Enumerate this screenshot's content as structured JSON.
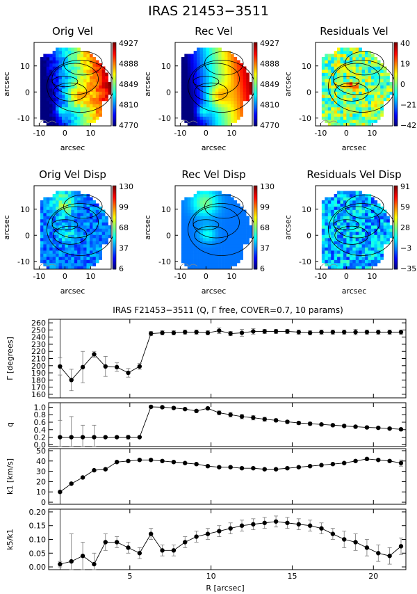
{
  "figure_title": "IRAS 21453−3511",
  "plots_title": "IRAS F21453−3511 (Q, Γ  free, COVER=0.7, 10 params)",
  "x_axis_label": "R [arcsec]",
  "colors": {
    "colormap": [
      "#00007f",
      "#0000ff",
      "#007fff",
      "#00ffff",
      "#7fff7f",
      "#ffff00",
      "#ff7f00",
      "#ff0000",
      "#7f0000"
    ],
    "contour": "#000000",
    "marker": "#000000"
  },
  "chart_data": [
    {
      "type": "heatmap",
      "id": "orig-vel",
      "title": "Orig Vel",
      "xlabel": "arcsec",
      "ylabel": "arcsec",
      "xticks": [
        "-10",
        "0",
        "10"
      ],
      "yticks": [
        "10",
        "0",
        "-10"
      ],
      "colorbar_ticks": [
        "4927",
        "4888",
        "4849",
        "4810",
        "4770"
      ],
      "colorbar_range": [
        4770,
        4927
      ],
      "pattern": "vel"
    },
    {
      "type": "heatmap",
      "id": "rec-vel",
      "title": "Rec Vel",
      "xlabel": "arcsec",
      "ylabel": "arcsec",
      "xticks": [
        "-10",
        "0",
        "10"
      ],
      "yticks": [
        "10",
        "0",
        "-10"
      ],
      "colorbar_ticks": [
        "4927",
        "4888",
        "4849",
        "4810",
        "4770"
      ],
      "colorbar_range": [
        4770,
        4927
      ],
      "pattern": "vel-smooth"
    },
    {
      "type": "heatmap",
      "id": "residuals-vel",
      "title": "Residuals Vel",
      "xlabel": "arcsec",
      "ylabel": "arcsec",
      "xticks": [
        "-10",
        "0",
        "10"
      ],
      "yticks": [
        "10",
        "0",
        "-10"
      ],
      "colorbar_ticks": [
        "40",
        "19",
        "0",
        "−21",
        "−42"
      ],
      "colorbar_range": [
        -42,
        40
      ],
      "pattern": "resid"
    },
    {
      "type": "heatmap",
      "id": "orig-vel-disp",
      "title": "Orig Vel Disp",
      "xlabel": "arcsec",
      "ylabel": "arcsec",
      "xticks": [
        "-10",
        "0",
        "10"
      ],
      "yticks": [
        "10",
        "0",
        "-10"
      ],
      "colorbar_ticks": [
        "130",
        "99",
        "68",
        "37",
        "6"
      ],
      "colorbar_range": [
        6,
        130
      ],
      "pattern": "disp"
    },
    {
      "type": "heatmap",
      "id": "rec-vel-disp",
      "title": "Rec Vel Disp",
      "xlabel": "arcsec",
      "ylabel": "arcsec",
      "xticks": [
        "-10",
        "0",
        "10"
      ],
      "yticks": [
        "10",
        "0",
        "-10"
      ],
      "colorbar_ticks": [
        "130",
        "99",
        "68",
        "37",
        "6"
      ],
      "colorbar_range": [
        6,
        130
      ],
      "pattern": "disp-smooth"
    },
    {
      "type": "heatmap",
      "id": "residuals-vel-disp",
      "title": "Residuals Vel Disp",
      "xlabel": "arcsec",
      "ylabel": "arcsec",
      "xticks": [
        "-10",
        "0",
        "10"
      ],
      "yticks": [
        "10",
        "0",
        "-10"
      ],
      "colorbar_ticks": [
        "91",
        "59",
        "28",
        "−3",
        "−35"
      ],
      "colorbar_range": [
        -35,
        91
      ],
      "pattern": "resid-disp"
    },
    {
      "type": "line",
      "id": "gamma",
      "ylabel": "Γ [degrees]",
      "ylim": [
        155,
        265
      ],
      "yticks": [
        160,
        170,
        180,
        190,
        200,
        210,
        220,
        230,
        240,
        250,
        260
      ],
      "x": [
        0.7,
        1.4,
        2.1,
        2.8,
        3.5,
        4.2,
        4.9,
        5.6,
        6.3,
        7.0,
        7.7,
        8.4,
        9.1,
        9.8,
        10.5,
        11.2,
        11.9,
        12.6,
        13.3,
        14.0,
        14.7,
        15.4,
        16.1,
        16.8,
        17.5,
        18.2,
        18.9,
        19.6,
        20.3,
        21.0,
        21.7
      ],
      "values": [
        199,
        180,
        198,
        216,
        199,
        198,
        190,
        199,
        245,
        246,
        246,
        247,
        247,
        246,
        249,
        245,
        246,
        248,
        248,
        248,
        248,
        247,
        246,
        247,
        247,
        247,
        247,
        247,
        247,
        247,
        247
      ],
      "errors": [
        12,
        15,
        22,
        4,
        14,
        6,
        6,
        4,
        3,
        3,
        3,
        3,
        3,
        3,
        4,
        3,
        5,
        4,
        3,
        3,
        3,
        3,
        3,
        3,
        3,
        3,
        4,
        3,
        3,
        3,
        3
      ]
    },
    {
      "type": "line",
      "id": "q",
      "ylabel": "q",
      "ylim": [
        -0.05,
        1.12
      ],
      "yticks": [
        0.0,
        0.2,
        0.4,
        0.6,
        0.8,
        1.0
      ],
      "tick_labels": [
        "0.0",
        "0.2",
        "0.4",
        "0.6",
        "0.8",
        "1.0"
      ],
      "x": [
        0.7,
        1.4,
        2.1,
        2.8,
        3.5,
        4.2,
        4.9,
        5.6,
        6.3,
        7.0,
        7.7,
        8.4,
        9.1,
        9.8,
        10.5,
        11.2,
        11.9,
        12.6,
        13.3,
        14.0,
        14.7,
        15.4,
        16.1,
        16.8,
        17.5,
        18.2,
        18.9,
        19.6,
        20.3,
        21.0,
        21.7
      ],
      "values": [
        0.2,
        0.2,
        0.2,
        0.2,
        0.2,
        0.2,
        0.2,
        0.2,
        1.01,
        1.0,
        0.98,
        0.95,
        0.9,
        0.97,
        0.85,
        0.8,
        0.75,
        0.72,
        0.68,
        0.65,
        0.61,
        0.58,
        0.56,
        0.54,
        0.52,
        0.5,
        0.48,
        0.46,
        0.45,
        0.43,
        0.41
      ],
      "errors": [
        0.45,
        0.55,
        0.32,
        0.32,
        0.0,
        0.0,
        0.05,
        0.0,
        0.03,
        0.03,
        0.03,
        0.03,
        0.03,
        0.03,
        0.05,
        0.06,
        0.06,
        0.06,
        0.05,
        0.04,
        0.04,
        0.04,
        0.04,
        0.03,
        0.03,
        0.03,
        0.03,
        0.03,
        0.03,
        0.03,
        0.03
      ]
    },
    {
      "type": "line",
      "id": "k1",
      "ylabel": "k1 [km/s]",
      "ylim": [
        -2,
        52
      ],
      "yticks": [
        0,
        10,
        20,
        30,
        40,
        50
      ],
      "x": [
        0.7,
        1.4,
        2.1,
        2.8,
        3.5,
        4.2,
        4.9,
        5.6,
        6.3,
        7.0,
        7.7,
        8.4,
        9.1,
        9.8,
        10.5,
        11.2,
        11.9,
        12.6,
        13.3,
        14.0,
        14.7,
        15.4,
        16.1,
        16.8,
        17.5,
        18.2,
        18.9,
        19.6,
        20.3,
        21.0,
        21.7
      ],
      "values": [
        10,
        18,
        24,
        31,
        32,
        39,
        40,
        41,
        41,
        40,
        39,
        38,
        37,
        35,
        34,
        34,
        33,
        33,
        32,
        32,
        33,
        34,
        35,
        36,
        37,
        38,
        40,
        42,
        41,
        40,
        38
      ],
      "errors": [
        1,
        1,
        1,
        1,
        1,
        1,
        1,
        1,
        1,
        1,
        1,
        1,
        1,
        1,
        1,
        1,
        1,
        1,
        1,
        1,
        1,
        1,
        1,
        1,
        1,
        1,
        1,
        1,
        1,
        1,
        3
      ]
    },
    {
      "type": "line",
      "id": "k5k1",
      "ylabel": "k5/k1",
      "ylim": [
        -0.01,
        0.21
      ],
      "yticks": [
        0.0,
        0.05,
        0.1,
        0.15,
        0.2
      ],
      "tick_labels": [
        "0.00",
        "0.05",
        "0.10",
        "0.15",
        "0.20"
      ],
      "x": [
        0.7,
        1.4,
        2.1,
        2.8,
        3.5,
        4.2,
        4.9,
        5.6,
        6.3,
        7.0,
        7.7,
        8.4,
        9.1,
        9.8,
        10.5,
        11.2,
        11.9,
        12.6,
        13.3,
        14.0,
        14.7,
        15.4,
        16.1,
        16.8,
        17.5,
        18.2,
        18.9,
        19.6,
        20.3,
        21.0,
        21.7
      ],
      "values": [
        0.01,
        0.02,
        0.04,
        0.01,
        0.09,
        0.09,
        0.07,
        0.05,
        0.12,
        0.06,
        0.06,
        0.09,
        0.11,
        0.12,
        0.13,
        0.14,
        0.15,
        0.155,
        0.16,
        0.165,
        0.16,
        0.155,
        0.15,
        0.14,
        0.12,
        0.1,
        0.09,
        0.07,
        0.05,
        0.04,
        0.075
      ],
      "errors": [
        0.01,
        0.1,
        0.05,
        0.04,
        0.03,
        0.02,
        0.02,
        0.02,
        0.02,
        0.02,
        0.02,
        0.02,
        0.02,
        0.02,
        0.02,
        0.02,
        0.02,
        0.02,
        0.02,
        0.02,
        0.02,
        0.02,
        0.02,
        0.02,
        0.02,
        0.03,
        0.03,
        0.03,
        0.03,
        0.03,
        0.03
      ]
    }
  ],
  "plot_xaxis": {
    "xlim": [
      0,
      22
    ],
    "xticks": [
      5,
      10,
      15,
      20
    ]
  }
}
